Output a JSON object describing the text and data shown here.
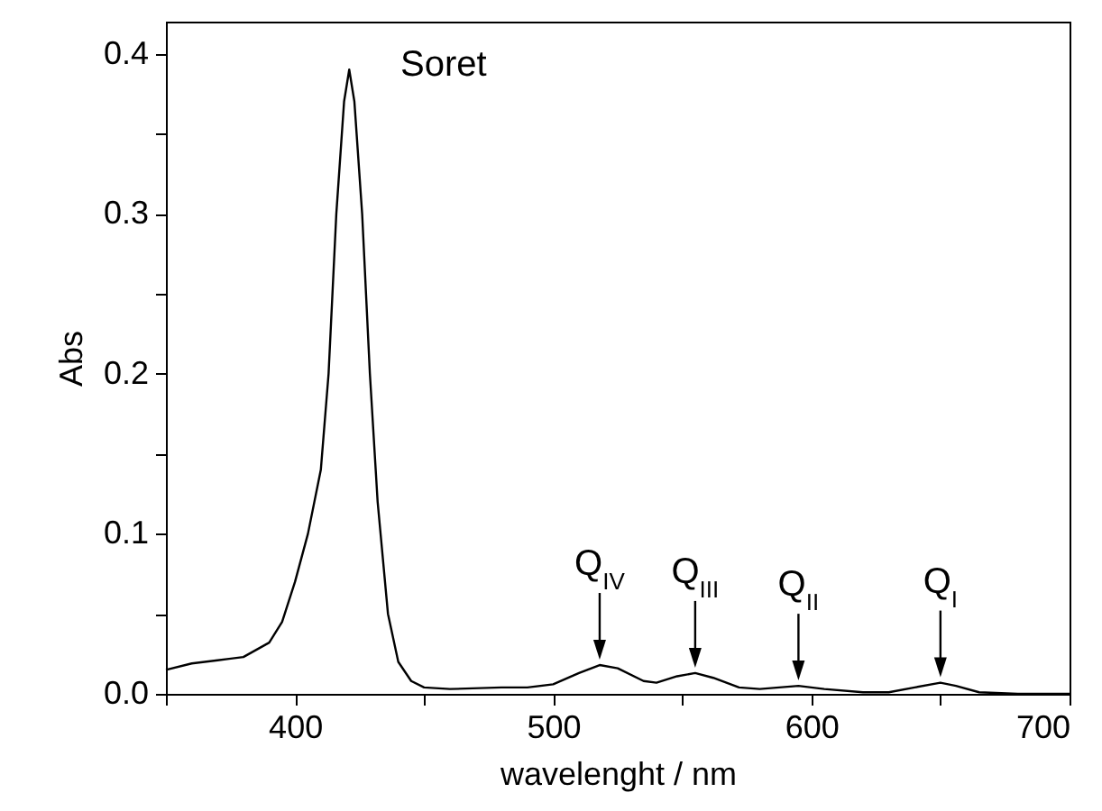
{
  "chart_data": {
    "type": "line",
    "xlabel": "wavelenght / nm",
    "ylabel": "Abs",
    "x": [
      350,
      360,
      370,
      380,
      390,
      395,
      400,
      405,
      410,
      413,
      416,
      419,
      421,
      423,
      426,
      429,
      432,
      436,
      440,
      445,
      450,
      460,
      480,
      490,
      500,
      510,
      518,
      525,
      535,
      540,
      548,
      555,
      562,
      572,
      580,
      595,
      605,
      620,
      630,
      640,
      650,
      656,
      665,
      680,
      700
    ],
    "series": [
      {
        "color": "#000000",
        "values": [
          0.015,
          0.019,
          0.021,
          0.023,
          0.032,
          0.045,
          0.07,
          0.1,
          0.14,
          0.2,
          0.3,
          0.37,
          0.39,
          0.37,
          0.3,
          0.2,
          0.12,
          0.05,
          0.02,
          0.008,
          0.004,
          0.003,
          0.004,
          0.004,
          0.006,
          0.013,
          0.018,
          0.016,
          0.008,
          0.007,
          0.011,
          0.013,
          0.01,
          0.004,
          0.003,
          0.005,
          0.003,
          0.001,
          0.001,
          0.004,
          0.007,
          0.005,
          0.001,
          0,
          0
        ]
      }
    ],
    "xlim": [
      350,
      700
    ],
    "ylim": [
      0,
      0.42
    ],
    "xticks": [
      {
        "value": 350,
        "label": null
      },
      400,
      {
        "value": 450,
        "label": null
      },
      500,
      {
        "value": 550,
        "label": null
      },
      600,
      {
        "value": 650,
        "label": null
      },
      700
    ],
    "yticks": [
      {
        "value": 0,
        "label": "0.0"
      },
      {
        "value": 0.05,
        "label": null
      },
      0.1,
      {
        "value": 0.15,
        "label": null
      },
      0.2,
      {
        "value": 0.25,
        "label": null
      },
      0.3,
      {
        "value": 0.35,
        "label": null
      },
      0.4
    ],
    "grid": false,
    "marker": "none",
    "line_style": "solid",
    "annotations": [
      "Soret",
      {
        "text": "Q$_{IV}$",
        "x": 518,
        "y": 0.018
      },
      {
        "text": "Q$_{III}$",
        "x": 555,
        "y": 0.013
      },
      {
        "text": "Q$_{II}$",
        "x": 595,
        "y": 0.005
      },
      {
        "text": "Q$_{I}$",
        "x": 650,
        "y": 0.007
      }
    ]
  }
}
